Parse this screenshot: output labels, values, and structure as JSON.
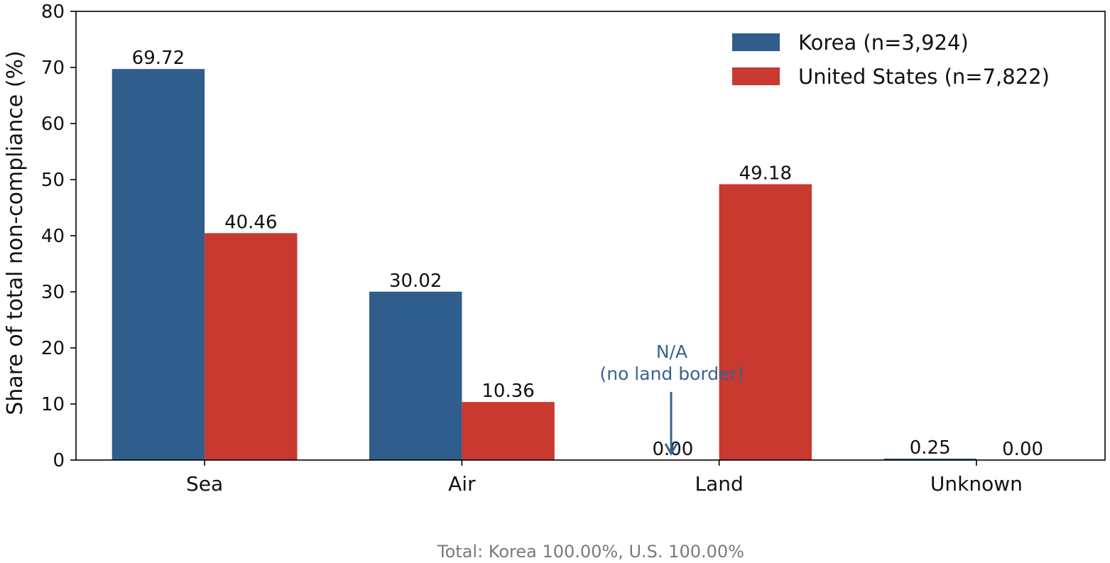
{
  "chart_data": {
    "type": "bar",
    "categories": [
      "Sea",
      "Air",
      "Land",
      "Unknown"
    ],
    "series": [
      {
        "name": "Korea (n=3,924)",
        "color": "#2f5d8c",
        "values": [
          69.72,
          30.02,
          0.0,
          0.25
        ]
      },
      {
        "name": "United States (n=7,822)",
        "color": "#c8392f",
        "values": [
          40.46,
          10.36,
          49.18,
          0.0
        ]
      }
    ],
    "value_labels": [
      [
        "69.72",
        "30.02",
        "0.00",
        "0.25"
      ],
      [
        "40.46",
        "10.36",
        "49.18",
        "0.00"
      ]
    ],
    "xlabel": "",
    "ylabel": "Share of total non-compliance (%)",
    "ylim": [
      0,
      80
    ],
    "yticks": [
      0,
      10,
      20,
      30,
      40,
      50,
      60,
      70,
      80
    ],
    "grid": false,
    "legend_position": "top-right",
    "annotation": {
      "lines": [
        "N/A",
        "(no land border)"
      ],
      "category": "Land",
      "series": "Korea (n=3,924)",
      "color": "#3a6290"
    },
    "footnote": "Total: Korea 100.00%, U.S. 100.00%",
    "footnote_color": "#7a7a7a"
  }
}
